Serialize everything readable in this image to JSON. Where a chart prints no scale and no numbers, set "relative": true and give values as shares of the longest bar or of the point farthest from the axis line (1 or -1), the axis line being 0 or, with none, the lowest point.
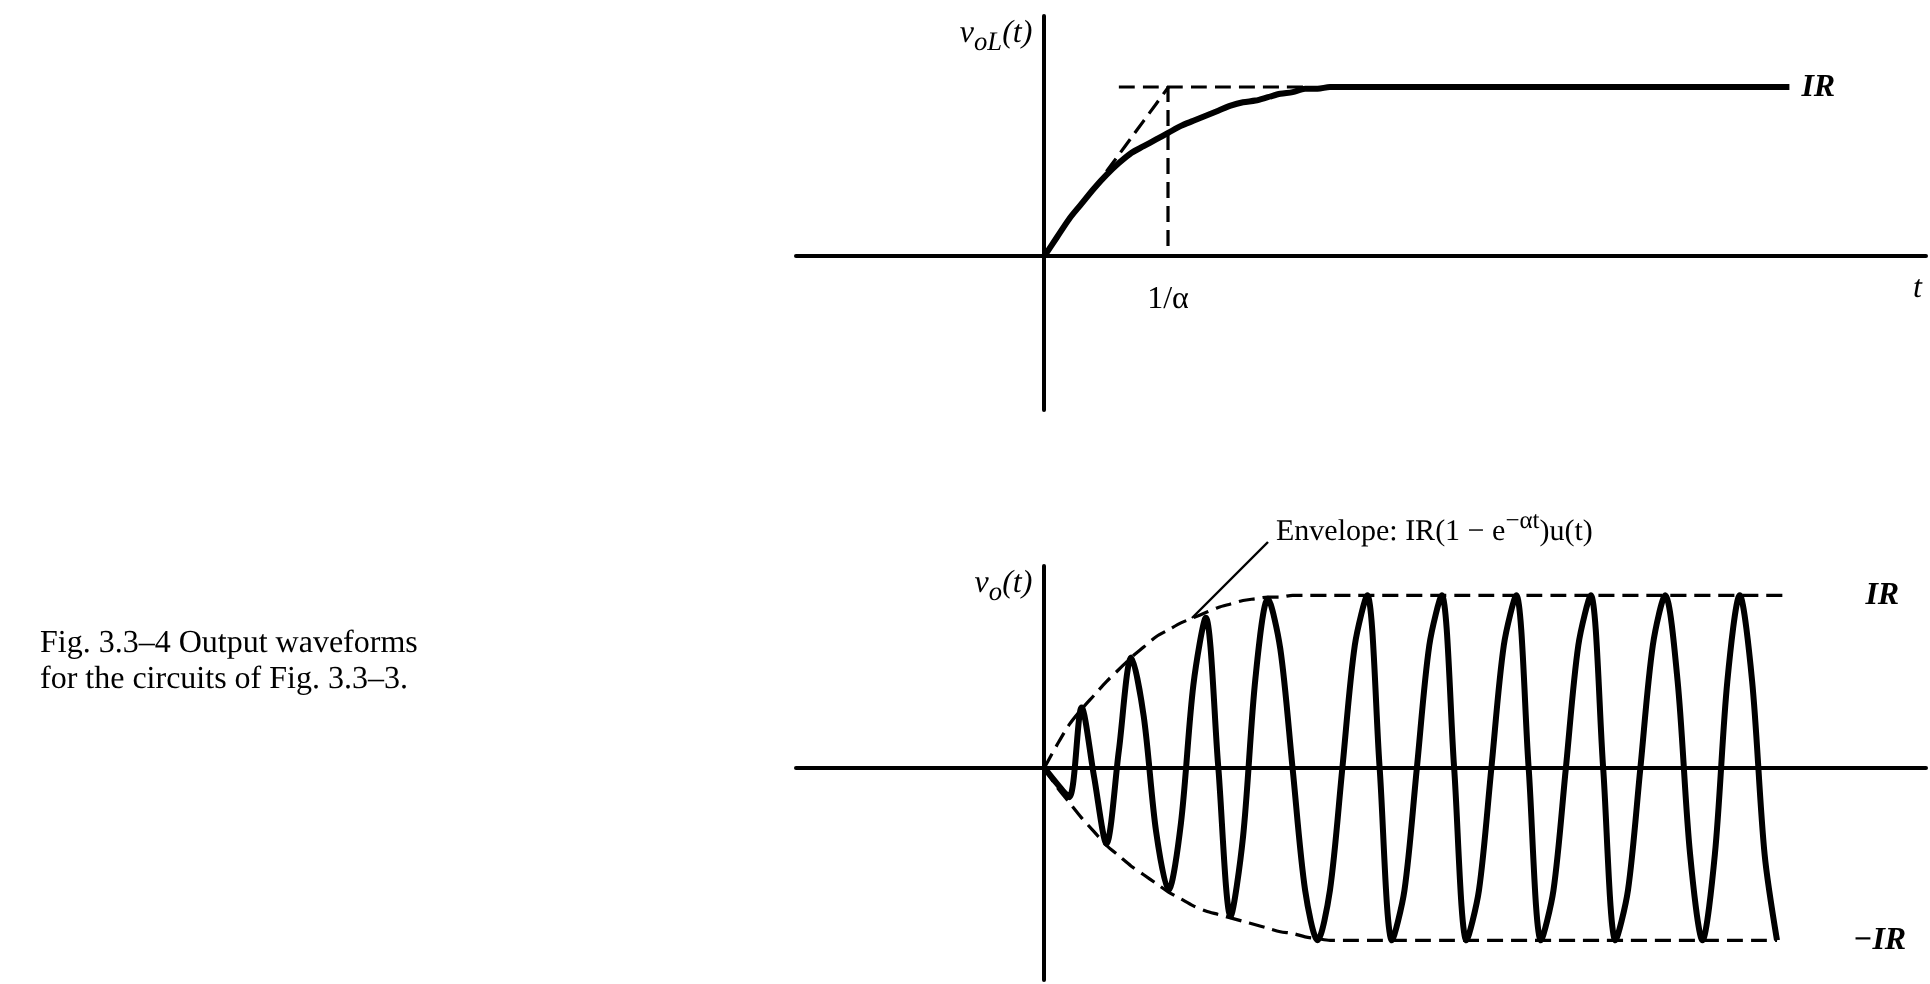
{
  "chart_data": [
    {
      "type": "line",
      "relative": true,
      "ylabel": "v$_{oL}$(t)",
      "xlabel": "t",
      "marker": "none",
      "categories": [
        null,
        null,
        null,
        null,
        null,
        null,
        null,
        null,
        null,
        null,
        null,
        null,
        null,
        null,
        null,
        null,
        null,
        null,
        null,
        null,
        null,
        null,
        null,
        null,
        null,
        null,
        null,
        null,
        null,
        null,
        null,
        null,
        null,
        null,
        null,
        null,
        null,
        null,
        null,
        null,
        null,
        null,
        null,
        null,
        null,
        null,
        null,
        null,
        null,
        null,
        null,
        null,
        null,
        null,
        null,
        null,
        null,
        null,
        null,
        null,
        null,
        null,
        null,
        null,
        null,
        null,
        null,
        null,
        null,
        null,
        null,
        null,
        null,
        null,
        null,
        null,
        null,
        null,
        null,
        null,
        null,
        null,
        null,
        null,
        null,
        null,
        null,
        null,
        null,
        null,
        null,
        null
      ],
      "series": [
        {
          "name": "IR",
          "color": "#000000",
          "line_style": "solid",
          "values": [
            null,
            null,
            null,
            null,
            null,
            null,
            null,
            null,
            null,
            null,
            null,
            null,
            null,
            null,
            null,
            null,
            null,
            null,
            null,
            null,
            0,
            0.11,
            0.22,
            0.31,
            0.4,
            0.48,
            0.55,
            0.61,
            0.65,
            0.69,
            0.73,
            0.77,
            0.8,
            0.83,
            0.86,
            0.89,
            0.91,
            0.92,
            0.94,
            0.96,
            0.97,
            0.99,
            0.99,
            1,
            1,
            1,
            1,
            1,
            1,
            1,
            1,
            1,
            1,
            1,
            1,
            1,
            1,
            1,
            1,
            1,
            1,
            1,
            1,
            1,
            1,
            1,
            1,
            1,
            1,
            1,
            1,
            1,
            1,
            1,
            1,
            1,
            1,
            1,
            1,
            1,
            1,
            null,
            null,
            null,
            null,
            null,
            null,
            null,
            null,
            null,
            null,
            null
          ]
        },
        {
          "color": "#000000",
          "line_style": "dashed",
          "values": [
            null,
            null,
            null,
            null,
            null,
            null,
            null,
            null,
            null,
            null,
            null,
            null,
            null,
            null,
            null,
            null,
            null,
            null,
            null,
            null,
            null,
            null,
            null,
            null,
            null,
            0.5,
            0.6,
            0.7,
            0.8,
            0.9,
            1,
            null,
            null,
            null,
            null,
            null,
            null,
            null,
            null,
            null,
            null,
            null,
            null,
            null,
            null,
            null,
            null,
            null,
            null,
            null,
            null,
            null,
            null,
            null,
            null,
            null,
            null,
            null,
            null,
            null,
            null,
            null,
            null,
            null,
            null,
            null,
            null,
            null,
            null,
            null,
            null,
            null,
            null,
            null,
            null,
            null,
            null,
            null,
            null,
            null,
            null,
            null,
            null,
            null,
            null,
            null,
            null,
            null,
            null,
            null,
            null,
            null
          ]
        },
        {
          "color": "#000000",
          "line_style": "dashed",
          "values": [
            null,
            null,
            null,
            null,
            null,
            null,
            null,
            null,
            null,
            null,
            null,
            null,
            null,
            null,
            null,
            null,
            null,
            null,
            null,
            null,
            null,
            null,
            null,
            null,
            null,
            null,
            1,
            1,
            1,
            1,
            1,
            1,
            1,
            1,
            1,
            1,
            1,
            1,
            1,
            1,
            1,
            1,
            null,
            null,
            null,
            null,
            null,
            null,
            null,
            null,
            null,
            null,
            null,
            null,
            null,
            null,
            null,
            null,
            null,
            null,
            null,
            null,
            null,
            null,
            null,
            null,
            null,
            null,
            null,
            null,
            null,
            null,
            null,
            null,
            null,
            null,
            null,
            null,
            null,
            null,
            null,
            null,
            null,
            null,
            null,
            null,
            null,
            null,
            null,
            null,
            null,
            null
          ]
        }
      ],
      "annotations": [
        "1/α"
      ]
    },
    {
      "type": "line",
      "relative": true,
      "ylabel": "v$_{o}$(t)",
      "marker": "none",
      "categories": [
        null,
        null,
        null,
        null,
        null,
        null,
        null,
        null,
        null,
        null,
        null,
        null,
        null,
        null,
        null,
        null,
        null,
        null,
        null,
        null,
        null,
        null,
        null,
        null,
        null,
        null,
        null,
        null,
        null,
        null,
        null,
        null,
        null,
        null,
        null,
        null,
        null,
        null,
        null,
        null,
        null,
        null,
        null,
        null,
        null,
        null,
        null,
        null,
        null,
        null,
        null,
        null,
        null,
        null,
        null,
        null,
        null,
        null,
        null,
        null,
        null,
        null,
        null,
        null,
        null,
        null,
        null,
        null,
        null,
        null,
        null,
        null,
        null,
        null,
        null,
        null,
        null,
        null,
        null,
        null,
        null,
        null,
        null,
        null,
        null,
        null,
        null,
        null,
        null,
        null,
        null,
        null
      ],
      "series": [
        {
          "color": "#000000",
          "line_style": "solid",
          "values": [
            null,
            null,
            null,
            null,
            null,
            null,
            null,
            null,
            null,
            null,
            null,
            null,
            null,
            null,
            null,
            null,
            null,
            null,
            null,
            null,
            0,
            -0.09,
            -0.17,
            0.35,
            -0.05,
            -0.44,
            0.1,
            0.64,
            0.3,
            -0.37,
            -0.71,
            -0.32,
            0.48,
            0.87,
            0.01,
            -0.86,
            -0.4,
            0.52,
            0.98,
            0.69,
            -0.01,
            -0.71,
            -1,
            -0.71,
            0,
            0.71,
            1,
            0,
            -1,
            -0.71,
            0,
            0.71,
            1,
            0,
            -1,
            -0.71,
            0,
            0.71,
            1,
            0,
            -1,
            -0.71,
            0,
            0.71,
            1,
            0,
            -1,
            -0.71,
            0,
            0.71,
            1,
            0.5,
            -0.5,
            -1,
            -0.5,
            0.5,
            1,
            0.5,
            -0.5,
            -1,
            null,
            null,
            null,
            null,
            null,
            null,
            null,
            null,
            null,
            null,
            null,
            null
          ]
        },
        {
          "name": "IR",
          "color": "#000000",
          "line_style": "dashed",
          "values": [
            null,
            null,
            null,
            null,
            null,
            null,
            null,
            null,
            null,
            null,
            null,
            null,
            null,
            null,
            null,
            null,
            null,
            null,
            null,
            null,
            0,
            0.13,
            0.25,
            0.34,
            0.42,
            0.5,
            0.57,
            0.64,
            0.7,
            0.76,
            0.8,
            0.84,
            0.87,
            0.9,
            0.93,
            0.95,
            0.97,
            0.98,
            0.99,
            0.99,
            1,
            1,
            1,
            1,
            1,
            1,
            1,
            1,
            1,
            1,
            1,
            1,
            1,
            1,
            1,
            1,
            1,
            1,
            1,
            1,
            1,
            1,
            1,
            1,
            1,
            1,
            1,
            1,
            1,
            1,
            1,
            1,
            1,
            1,
            1,
            1,
            1,
            1,
            1,
            1,
            1,
            null,
            null,
            null,
            null,
            null,
            null,
            null,
            null,
            null,
            null,
            null
          ]
        },
        {
          "name": "−IR",
          "color": "#000000",
          "line_style": "dashed",
          "values": [
            null,
            null,
            null,
            null,
            null,
            null,
            null,
            null,
            null,
            null,
            null,
            null,
            null,
            null,
            null,
            null,
            null,
            null,
            null,
            null,
            0,
            -0.11,
            -0.2,
            -0.29,
            -0.37,
            -0.45,
            -0.51,
            -0.57,
            -0.62,
            -0.67,
            -0.72,
            -0.76,
            -0.8,
            -0.83,
            -0.85,
            -0.87,
            -0.89,
            -0.91,
            -0.93,
            -0.95,
            -0.96,
            -0.98,
            -0.99,
            -1,
            -1,
            -1,
            -1,
            -1,
            -1,
            -1,
            -1,
            -1,
            -1,
            -1,
            -1,
            -1,
            -1,
            -1,
            -1,
            -1,
            -1,
            -1,
            -1,
            -1,
            -1,
            -1,
            -1,
            -1,
            -1,
            -1,
            -1,
            -1,
            -1,
            -1,
            -1,
            -1,
            -1,
            -1,
            -1,
            -1,
            null,
            null,
            null,
            null,
            null,
            null,
            null,
            null,
            null,
            null,
            null,
            null
          ]
        }
      ],
      "annotations": [
        "Envelope: IR(1 − e$^{−αt}$)u(t)",
        "Fig. 3.3–4 Output waveforms for the circuits of Fig. 3.3–3."
      ]
    }
  ]
}
